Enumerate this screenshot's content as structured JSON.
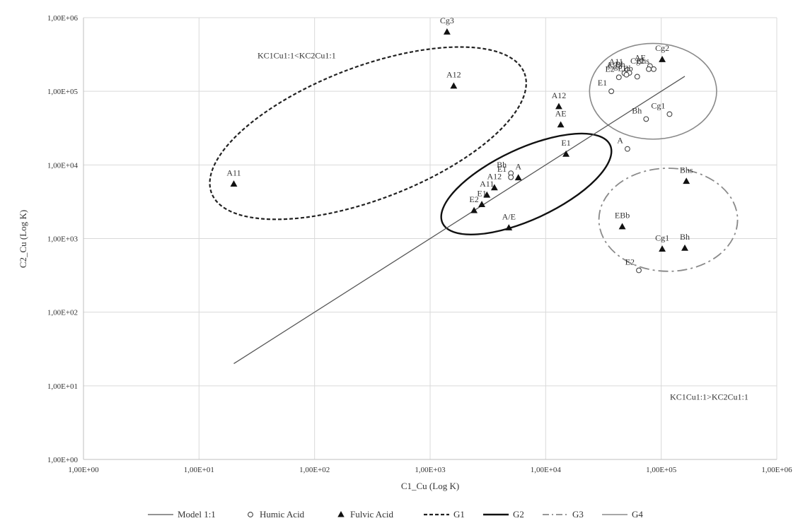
{
  "chart_data": {
    "type": "scatter",
    "title": "",
    "xlabel": "C1_Cu (Log K)",
    "ylabel": "C2_Cu (Log K)",
    "xscale": "log",
    "yscale": "log",
    "xlim": [
      1,
      1000000
    ],
    "ylim": [
      1,
      1000000
    ],
    "grid": true,
    "legend_placement": "bottom",
    "x_ticks": [
      "1,00E+00",
      "1,00E+01",
      "1,00E+02",
      "1,00E+03",
      "1,00E+04",
      "1,00E+05",
      "1,00E+06"
    ],
    "y_ticks": [
      "1,00E+00",
      "1,00E+01",
      "1,00E+02",
      "1,00E+03",
      "1,00E+04",
      "1,00E+05",
      "1,00E+06"
    ],
    "annotations": [
      {
        "text": "KC1Cu1:1<KC2Cu1:1",
        "x": 70,
        "y": 280000
      },
      {
        "text": "KC1Cu1:1>KC2Cu1:1",
        "x": 260000,
        "y": 6.5
      }
    ],
    "series": [
      {
        "name": "Humic Acid",
        "marker": "circle-open",
        "points": [
          {
            "label": "A11",
            "x": 51000,
            "y": 195000
          },
          {
            "label": "A/E",
            "x": 48000,
            "y": 176000
          },
          {
            "label": "Bh",
            "x": 53000,
            "y": 178000
          },
          {
            "label": "AE",
            "x": 80000,
            "y": 220000
          },
          {
            "label": "Cg2",
            "x": 78000,
            "y": 200000
          },
          {
            "label": "Bhs",
            "x": 86000,
            "y": 200000
          },
          {
            "label": "E2",
            "x": 43000,
            "y": 155000
          },
          {
            "label": "EBb",
            "x": 62000,
            "y": 158000
          },
          {
            "label": "E1",
            "x": 37000,
            "y": 100000
          },
          {
            "label": "Cg3",
            "x": 50000,
            "y": 168000
          },
          {
            "label": "Bh",
            "x": 74000,
            "y": 42000
          },
          {
            "label": "Cg1",
            "x": 118000,
            "y": 49000
          },
          {
            "label": "A",
            "x": 51000,
            "y": 16500
          },
          {
            "label": "Bh",
            "x": 5000,
            "y": 7700
          },
          {
            "label": "E1",
            "x": 5000,
            "y": 6800
          },
          {
            "label": "E2",
            "x": 64000,
            "y": 370
          }
        ]
      },
      {
        "name": "Fulvic Acid",
        "marker": "triangle-filled",
        "points": [
          {
            "label": "Cg3",
            "x": 1400,
            "y": 640000
          },
          {
            "label": "A12",
            "x": 1600,
            "y": 118000
          },
          {
            "label": "A11",
            "x": 20,
            "y": 5500
          },
          {
            "label": "A12",
            "x": 13000,
            "y": 62000
          },
          {
            "label": "AE",
            "x": 13500,
            "y": 35000
          },
          {
            "label": "E1",
            "x": 15000,
            "y": 14000
          },
          {
            "label": "A",
            "x": 5800,
            "y": 6700
          },
          {
            "label": "A12",
            "x": 3600,
            "y": 4900
          },
          {
            "label": "A11",
            "x": 3100,
            "y": 3900
          },
          {
            "label": "E1",
            "x": 2800,
            "y": 2900
          },
          {
            "label": "E2",
            "x": 2400,
            "y": 2400
          },
          {
            "label": "A/E",
            "x": 4800,
            "y": 1400
          },
          {
            "label": "Cg2",
            "x": 102000,
            "y": 270000
          },
          {
            "label": "Bhs",
            "x": 165000,
            "y": 6000
          },
          {
            "label": "EBb",
            "x": 46000,
            "y": 1450
          },
          {
            "label": "Cg1",
            "x": 102000,
            "y": 720
          },
          {
            "label": "Bh",
            "x": 160000,
            "y": 740
          }
        ]
      }
    ],
    "lines": [
      {
        "name": "Model 1:1",
        "x": [
          20,
          160000
        ],
        "y": [
          20,
          160000
        ]
      }
    ],
    "groups": [
      {
        "name": "G1",
        "style": "dashed",
        "cx": 290,
        "cy": 27000,
        "rx_decades": 1.45,
        "ry_decades": 0.9,
        "rotation_deg": -21
      },
      {
        "name": "G2",
        "style": "solid-bold",
        "cx": 6800,
        "cy": 5500,
        "rx_decades": 0.8,
        "ry_decades": 0.48,
        "rotation_deg": -25
      },
      {
        "name": "G3",
        "style": "dash-dot",
        "cx": 115000,
        "cy": 1800,
        "rx_decades": 0.6,
        "ry_decades": 0.7,
        "rotation_deg": 0
      },
      {
        "name": "G4",
        "style": "solid-thin",
        "cx": 85000,
        "cy": 100000,
        "rx_decades": 0.55,
        "ry_decades": 0.65,
        "rotation_deg": 0
      }
    ],
    "legend": [
      "Model 1:1",
      "Humic Acid",
      "Fulvic Acid",
      "G1",
      "G2",
      "G3",
      "G4"
    ]
  }
}
